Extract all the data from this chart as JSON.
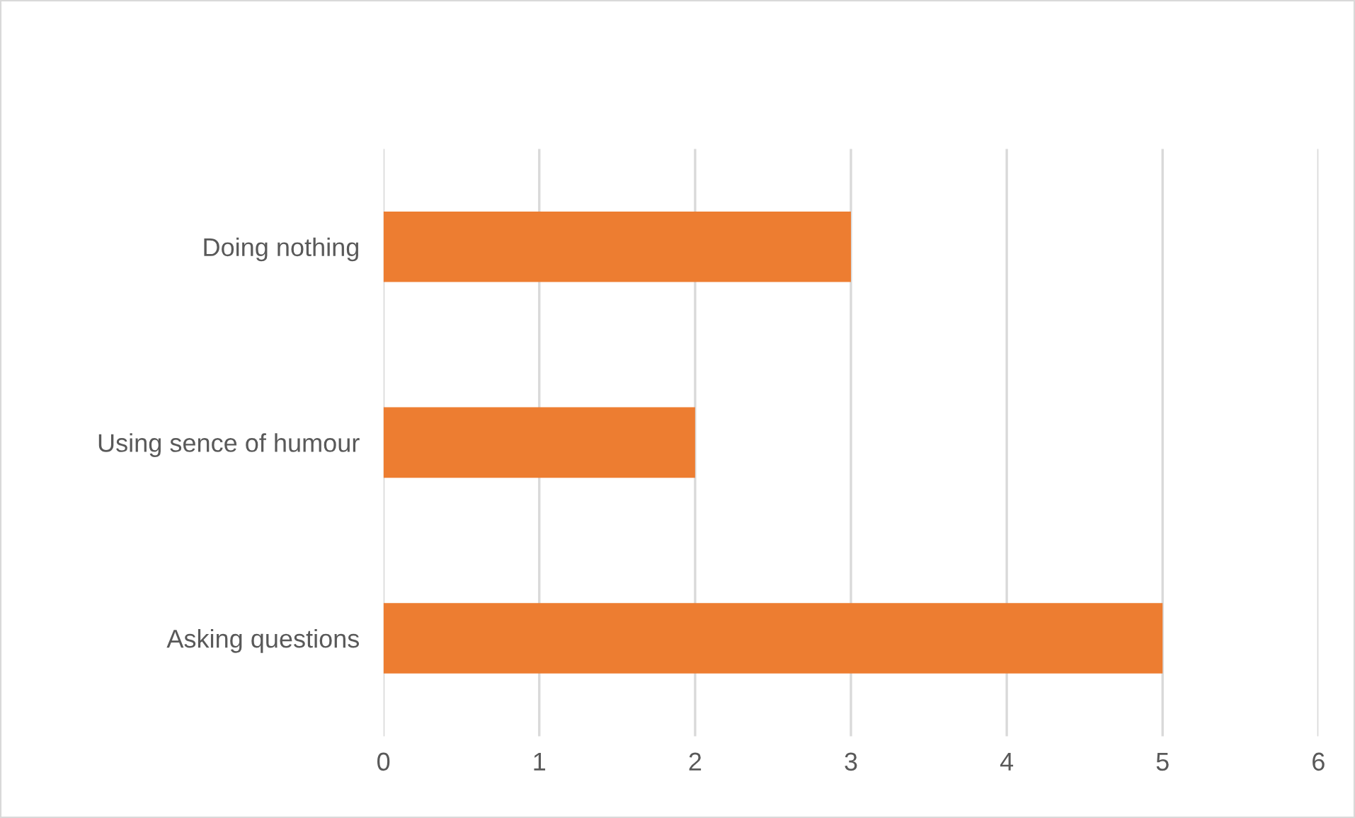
{
  "chart_data": {
    "type": "bar",
    "orientation": "horizontal",
    "categories": [
      "Doing nothing",
      "Using sence of humour",
      "Asking questions"
    ],
    "values": [
      3,
      2,
      5
    ],
    "color": "#ed7d31",
    "xlim": [
      0,
      6
    ],
    "xticks": [
      0,
      1,
      2,
      3,
      4,
      5,
      6
    ],
    "grid": "x"
  }
}
